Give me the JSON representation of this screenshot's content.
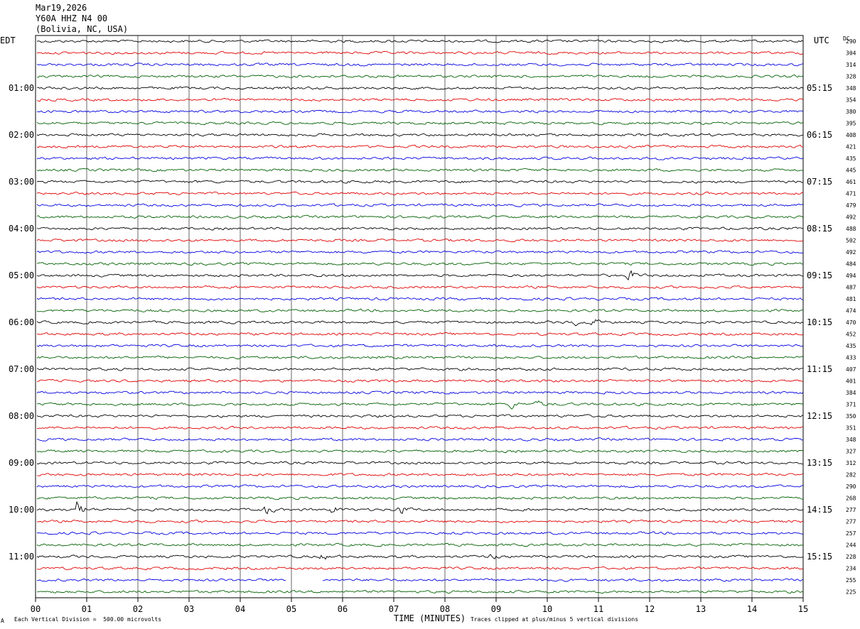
{
  "header": {
    "date": "Mar19,2026",
    "station": "Y60A HHZ N4 00",
    "location": "(Bolivia, NC, USA)",
    "left_tz": "EDT",
    "right_tz": "UTC",
    "dc_label": "DC"
  },
  "footer": {
    "scale_note": "Each Vertical Division =  500.00 microvolts",
    "clip_note": "Traces clipped at plus/minus 5 vertical divisions",
    "mark": "A"
  },
  "chart_data": {
    "type": "line",
    "title": "",
    "xlabel": "TIME (MINUTES)",
    "ylabel": "",
    "xlim": [
      0,
      15
    ],
    "x_ticks": [
      "00",
      "01",
      "02",
      "03",
      "04",
      "05",
      "06",
      "07",
      "08",
      "09",
      "10",
      "11",
      "12",
      "13",
      "14",
      "15"
    ],
    "grid": true,
    "trace_colors": [
      "#000000",
      "#e00000",
      "#0000e0",
      "#006000"
    ],
    "left_hour_labels": [
      "01:00",
      "02:00",
      "03:00",
      "04:00",
      "05:00",
      "06:00",
      "07:00",
      "08:00",
      "09:00",
      "10:00",
      "11:00"
    ],
    "right_hour_labels": [
      "05:15",
      "06:15",
      "07:15",
      "08:15",
      "09:15",
      "10:15",
      "11:15",
      "12:15",
      "13:15",
      "14:15",
      "15:15"
    ],
    "dc_offsets": [
      290,
      304,
      314,
      328,
      348,
      354,
      380,
      395,
      408,
      421,
      435,
      445,
      461,
      471,
      479,
      492,
      488,
      502,
      492,
      484,
      494,
      487,
      481,
      474,
      470,
      452,
      435,
      433,
      407,
      401,
      384,
      371,
      350,
      351,
      348,
      327,
      312,
      282,
      290,
      268,
      277,
      277,
      257,
      244,
      228,
      234,
      255,
      225
    ],
    "events": [
      {
        "trace": 20,
        "minute": 11.6,
        "amplitude": 2.2
      },
      {
        "trace": 24,
        "minute": 10.5,
        "amplitude": 1.5
      },
      {
        "trace": 24,
        "minute": 10.9,
        "amplitude": 1.4
      },
      {
        "trace": 31,
        "minute": 9.3,
        "amplitude": 1.5
      },
      {
        "trace": 31,
        "minute": 9.8,
        "amplitude": 1.4
      },
      {
        "trace": 40,
        "minute": 0.8,
        "amplitude": 4.0
      },
      {
        "trace": 40,
        "minute": 4.5,
        "amplitude": 2.0
      },
      {
        "trace": 40,
        "minute": 5.8,
        "amplitude": 1.6
      },
      {
        "trace": 40,
        "minute": 7.1,
        "amplitude": 2.3
      },
      {
        "trace": 44,
        "minute": 5.6,
        "amplitude": 1.3
      },
      {
        "trace": 44,
        "minute": 8.9,
        "amplitude": 1.3
      }
    ],
    "gaps": [
      {
        "trace": 46,
        "from_minute": 4.9,
        "to_minute": 5.6
      }
    ]
  }
}
